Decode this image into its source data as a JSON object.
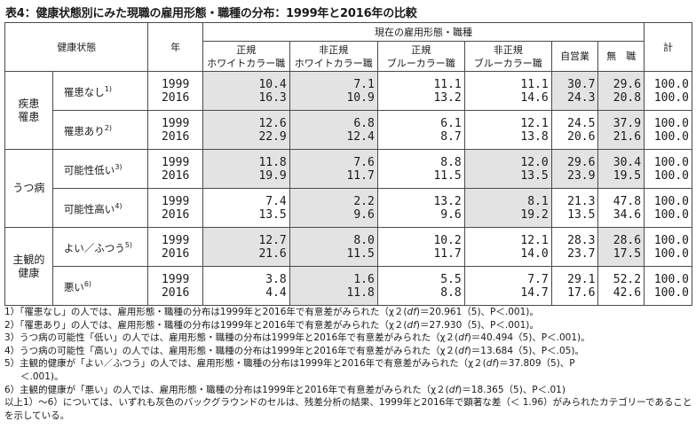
{
  "title": "表4：健康状態別にみた現職の雇用形態・職種の分布：1999年と2016年の比較",
  "header": {
    "health": "健康状態",
    "year": "年",
    "current": "現在の雇用形態・職種",
    "total": "計",
    "cols": [
      {
        "l1": "正規",
        "l2": "ホワイトカラー職"
      },
      {
        "l1": "非正規",
        "l2": "ホワイトカラー職"
      },
      {
        "l1": "正規",
        "l2": "ブルーカラー職"
      },
      {
        "l1": "非正規",
        "l2": "ブルーカラー職"
      },
      {
        "l1": "自営業",
        "l2": ""
      },
      {
        "l1": "無　職",
        "l2": ""
      }
    ]
  },
  "groups": [
    {
      "name1": "疾患",
      "name2": "罹患"
    },
    {
      "name1": "うつ病",
      "name2": ""
    },
    {
      "name1": "主観的",
      "name2": "健康"
    }
  ],
  "rows": [
    {
      "label": "罹患なし",
      "note": "1)",
      "y1": "1999",
      "y2": "2016",
      "cells": [
        [
          "10.4",
          "16.3"
        ],
        [
          "7.1",
          "10.9"
        ],
        [
          "11.1",
          "13.2"
        ],
        [
          "11.1",
          "14.6"
        ],
        [
          "30.7",
          "24.3"
        ],
        [
          "29.6",
          "20.8"
        ],
        [
          "100.0",
          "100.0"
        ]
      ]
    },
    {
      "label": "罹患あり",
      "note": "2)",
      "y1": "1999",
      "y2": "2016",
      "cells": [
        [
          "12.6",
          "22.9"
        ],
        [
          "6.8",
          "12.4"
        ],
        [
          "6.1",
          "8.7"
        ],
        [
          "12.1",
          "13.8"
        ],
        [
          "24.5",
          "20.6"
        ],
        [
          "37.9",
          "21.6"
        ],
        [
          "100.0",
          "100.0"
        ]
      ]
    },
    {
      "label": "可能性低い",
      "note": "3)",
      "y1": "1999",
      "y2": "2016",
      "cells": [
        [
          "11.8",
          "19.9"
        ],
        [
          "7.6",
          "11.7"
        ],
        [
          "8.8",
          "11.5"
        ],
        [
          "12.0",
          "13.5"
        ],
        [
          "29.6",
          "23.9"
        ],
        [
          "30.4",
          "19.5"
        ],
        [
          "100.0",
          "100.0"
        ]
      ]
    },
    {
      "label": "可能性高い",
      "note": "4)",
      "y1": "1999",
      "y2": "2016",
      "cells": [
        [
          "7.4",
          "13.5"
        ],
        [
          "2.2",
          "9.6"
        ],
        [
          "13.2",
          "9.6"
        ],
        [
          "8.1",
          "19.2"
        ],
        [
          "21.3",
          "13.5"
        ],
        [
          "47.8",
          "34.6"
        ],
        [
          "100.0",
          "100.0"
        ]
      ]
    },
    {
      "label": "よい／ふつう",
      "note": "5)",
      "y1": "1999",
      "y2": "2016",
      "cells": [
        [
          "12.7",
          "21.6"
        ],
        [
          "8.0",
          "11.5"
        ],
        [
          "10.2",
          "11.7"
        ],
        [
          "12.1",
          "14.0"
        ],
        [
          "28.3",
          "23.7"
        ],
        [
          "28.6",
          "17.5"
        ],
        [
          "100.0",
          "100.0"
        ]
      ]
    },
    {
      "label": "悪い",
      "note": "6)",
      "y1": "1999",
      "y2": "2016",
      "cells": [
        [
          "3.8",
          "4.4"
        ],
        [
          "1.6",
          "11.8"
        ],
        [
          "5.5",
          "8.8"
        ],
        [
          "7.7",
          "14.7"
        ],
        [
          "29.1",
          "17.6"
        ],
        [
          "52.2",
          "42.6"
        ],
        [
          "100.0",
          "100.0"
        ]
      ]
    }
  ],
  "shaded": [
    [
      0,
      1,
      4,
      5
    ],
    [
      0,
      1,
      5
    ],
    [
      0,
      1,
      3,
      4,
      5
    ],
    [
      1,
      3
    ],
    [
      0,
      1,
      5
    ],
    [
      1
    ]
  ],
  "notes": {
    "n1": "1）「罹患なし」の人では、雇用形態・職種の分布は1999年と2016年で有意差がみられた（χ２(",
    "n1b": ")＝20.961（5)、P＜.001)。",
    "n2": "2）「罹患あり」の人では、雇用形態・職種の分布は1999年と2016年で有意差がみられた（χ２(",
    "n2b": ")＝27.930（5)、P＜.001)。",
    "n3": "3）うつ病の可能性「低い」の人では、雇用形態・職種の分布は1999年と2016年で有意差がみられた（χ２(",
    "n3b": ")＝40.494（5)、P＜.001)。",
    "n4": "4）うつ病の可能性「高い」の人では、雇用形態・職種の分布は1999年と2016年で有意差がみられた（χ２(",
    "n4b": ")＝13.684（5)、P＜.05)。",
    "n5": "5）主観的健康が「よい／ふつう」の人では、雇用形態・職種の分布は1999年と2016年で有意差がみられた（χ２(",
    "n5b": ")＝37.809（5)、P",
    "n5c": "＜.001)。",
    "n6": "6）主観的健康が「悪い」の人では、雇用形態・職種の分布は1999年と2016年で有意差がみられた（χ２(",
    "n6b": ")＝18.365（5)、P＜.01)",
    "n7": "以上1）～6）については、いずれも灰色のバックグラウンドのセルは、残差分析の結果、1999年と2016年で顕著な差（＜ 1.96）がみられたカテゴリーであることを示している。",
    "df": "df"
  }
}
